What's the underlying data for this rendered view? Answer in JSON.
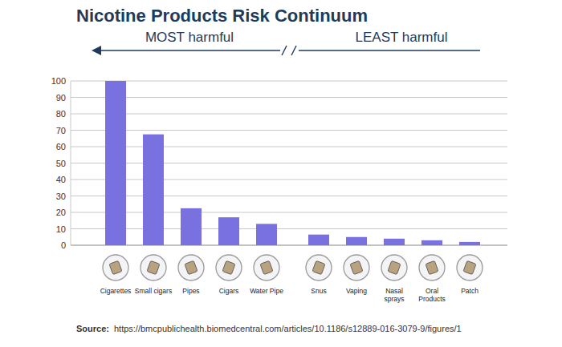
{
  "chart_data": {
    "type": "bar",
    "title": "Nicotine Products Risk Continuum",
    "annotations": [
      "MOST harmful",
      "LEAST harmful"
    ],
    "categories": [
      "Cigarettes",
      "Small cigars",
      "Pipes",
      "Cigars",
      "Water Pipe",
      "Snus",
      "Vaping",
      "Nasal sprays",
      "Oral Products",
      "Patch"
    ],
    "values": [
      100,
      67.5,
      22.5,
      17,
      13,
      6.5,
      5,
      4,
      3,
      2
    ],
    "color": "#7a71e0",
    "ylim": [
      0,
      100
    ],
    "yticks": [
      0,
      10,
      20,
      30,
      40,
      50,
      60,
      70,
      80,
      90,
      100
    ],
    "grid": true,
    "source_label": "Source:",
    "source_url": "https://bmcpublichealth.biomedcentral.com/articles/10.1186/s12889-016-3079-9/figures/1"
  }
}
